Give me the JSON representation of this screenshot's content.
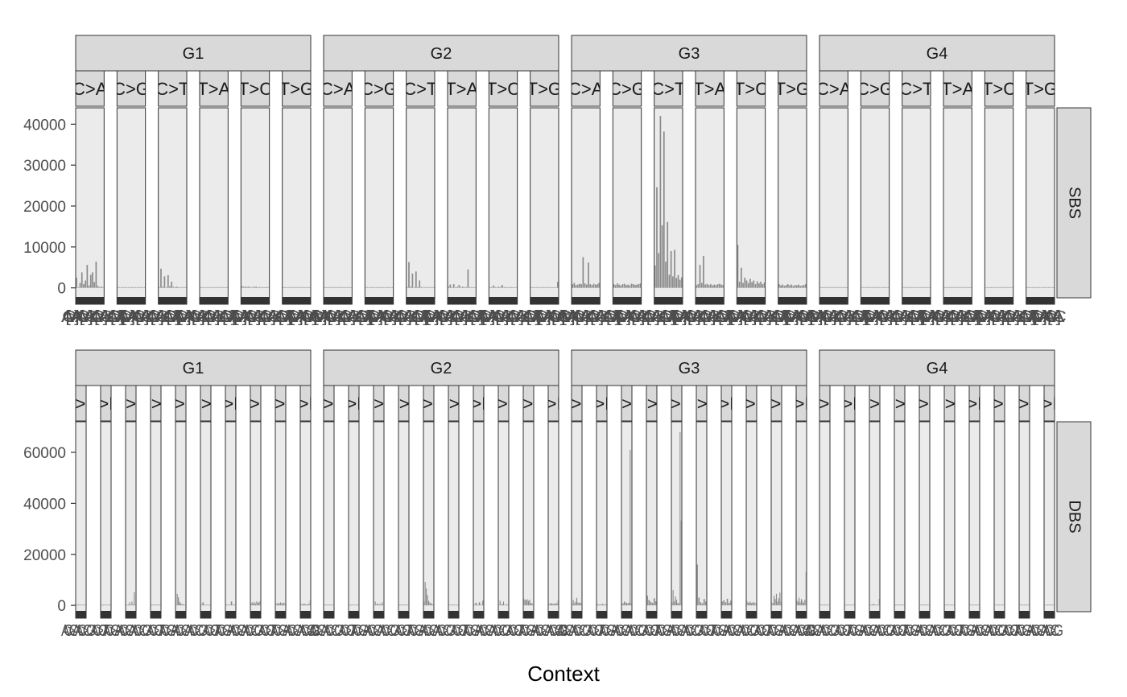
{
  "chart_data": {
    "type": "bar",
    "xlabel": "Context",
    "ylabel": "",
    "title": "",
    "grid": false,
    "legend": "none",
    "colors": {
      "panel_bg": "#ebebeb",
      "strip_bg": "#d9d9d9",
      "strip_border": "#333333",
      "bar": "#8a8a8a",
      "band": "#333333",
      "tick_text": "#4d4d4d"
    },
    "column_facets": [
      "G1",
      "G2",
      "G3",
      "G4"
    ],
    "rows": [
      {
        "name": "SBS",
        "ylim": [
          -4000,
          44000
        ],
        "yticks": [
          0,
          10000,
          20000,
          30000,
          40000
        ],
        "substitution_types": [
          "C>A",
          "C>G",
          "C>T",
          "T>A",
          "T>C",
          "T>G"
        ],
        "bins_per_type": 16,
        "x_tick_label_sample": [
          "A[C>A]A",
          "A[C>A]C",
          "A[C>A]G",
          "A[C>A]T"
        ],
        "groups": {
          "G1": [
            [
              2500,
              100,
              1200,
              3800,
              900,
              1800,
              5600,
              600,
              3200,
              3800,
              1400,
              6400,
              500,
              200,
              300,
              150
            ],
            [
              120,
              80,
              150,
              90,
              60,
              140,
              100,
              70,
              130,
              90,
              110,
              80,
              60,
              100,
              90,
              70
            ],
            [
              200,
              4700,
              300,
              2800,
              150,
              3100,
              400,
              1500,
              250,
              200,
              300,
              150,
              120,
              180,
              100,
              90
            ],
            [
              100,
              80,
              60,
              90,
              70,
              100,
              80,
              60,
              90,
              70,
              60,
              80,
              90,
              70,
              60,
              80
            ],
            [
              400,
              250,
              300,
              200,
              350,
              150,
              200,
              250,
              300,
              150,
              200,
              100,
              150,
              120,
              200,
              100
            ],
            [
              80,
              60,
              100,
              90,
              70,
              50,
              80,
              60,
              90,
              70,
              50,
              80,
              60,
              70,
              90,
              60
            ]
          ],
          "G2": [
            [
              80,
              50,
              60,
              40,
              70,
              60,
              50,
              40,
              60,
              50,
              40,
              30,
              60,
              50,
              40,
              30
            ],
            [
              50,
              40,
              60,
              30,
              50,
              40,
              30,
              50,
              40,
              60,
              30,
              40,
              50,
              30,
              40,
              30
            ],
            [
              200,
              6300,
              300,
              3500,
              150,
              4000,
              200,
              1800,
              200,
              100,
              150,
              80,
              100,
              120,
              90,
              80
            ],
            [
              300,
              800,
              200,
              900,
              150,
              250,
              700,
              200,
              300,
              150,
              200,
              4500,
              200,
              150,
              100,
              80
            ],
            [
              200,
              150,
              600,
              200,
              150,
              300,
              200,
              700,
              150,
              200,
              100,
              150,
              200,
              100,
              150,
              100
            ],
            [
              100,
              80,
              120,
              90,
              60,
              100,
              80,
              70,
              90,
              60,
              100,
              80,
              60,
              90,
              70,
              1500
            ]
          ],
          "G3": [
            [
              900,
              1200,
              700,
              800,
              1000,
              900,
              7500,
              1100,
              800,
              6200,
              900,
              700,
              1000,
              800,
              900,
              1200
            ],
            [
              900,
              700,
              1100,
              800,
              600,
              900,
              1000,
              700,
              800,
              600,
              1000,
              900,
              700,
              800,
              900,
              1100
            ],
            [
              5500,
              24600,
              8500,
              42000,
              15300,
              38200,
              6400,
              16100,
              3200,
              9000,
              2800,
              9300,
              2400,
              3100,
              2000,
              2600
            ],
            [
              600,
              900,
              5600,
              1200,
              7800,
              800,
              1000,
              700,
              900,
              600,
              800,
              700,
              900,
              1000,
              800,
              700
            ],
            [
              10500,
              1500,
              4900,
              1200,
              2500,
              1800,
              1200,
              2200,
              1400,
              1800,
              900,
              1600,
              1100,
              1500,
              900,
              1300
            ],
            [
              900,
              600,
              800,
              500,
              700,
              900,
              600,
              800,
              500,
              700,
              600,
              800,
              500,
              600,
              700,
              900
            ]
          ],
          "G4": [
            [
              20,
              10,
              15,
              20,
              10,
              15,
              20,
              10,
              15,
              20,
              10,
              15,
              20,
              10,
              15,
              20
            ],
            [
              15,
              10,
              20,
              15,
              10,
              20,
              15,
              10,
              20,
              15,
              10,
              20,
              15,
              10,
              20,
              15
            ],
            [
              150,
              0,
              120,
              0,
              100,
              0,
              130,
              0,
              110,
              0,
              90,
              0,
              80,
              0,
              100,
              0
            ],
            [
              60,
              0,
              40,
              0,
              50,
              0,
              30,
              0,
              40,
              0,
              50,
              0,
              30,
              0,
              40,
              0
            ],
            [
              20,
              10,
              15,
              20,
              10,
              15,
              20,
              10,
              15,
              20,
              10,
              15,
              20,
              10,
              15,
              20
            ],
            [
              15,
              10,
              20,
              15,
              10,
              20,
              15,
              10,
              20,
              15,
              10,
              20,
              15,
              10,
              20,
              15
            ]
          ]
        }
      },
      {
        "name": "DBS",
        "ylim": [
          -5000,
          72000
        ],
        "yticks": [
          0,
          20000,
          40000,
          60000
        ],
        "substitution_types": [
          "AC>NN",
          "AT>NN",
          "CC>NN",
          "CG>NN",
          "CT>NN",
          "GC>NN",
          "TA>NN",
          "TC>NN",
          "TG>NN",
          "TT>NN"
        ],
        "type_bins": [
          9,
          6,
          9,
          6,
          9,
          6,
          6,
          9,
          9,
          9
        ],
        "x_tick_label_sample": [
          "AC>CA",
          "AC>CG",
          "AC>CT",
          "AC>GA"
        ],
        "groups": {
          "G1": [
            [
              200,
              100,
              150,
              80,
              120,
              100,
              60,
              90,
              70
            ],
            [
              50,
              30,
              40,
              60,
              30,
              40
            ],
            [
              100,
              200,
              300,
              1200,
              200,
              1500,
              300,
              5200,
              400
            ],
            [
              200,
              100,
              150,
              80,
              120,
              100
            ],
            [
              300,
              4500,
              3200,
              1500,
              800,
              600,
              400,
              300,
              200
            ],
            [
              300,
              1200,
              200,
              150,
              100,
              80
            ],
            [
              100,
              80,
              60,
              1500,
              90,
              70
            ],
            [
              900,
              1200,
              800,
              1400,
              700,
              1600,
              1000,
              1300,
              1800
            ],
            [
              800,
              600,
              1000,
              700,
              1200,
              900,
              800,
              1100,
              600
            ],
            [
              600,
              400,
              500,
              700,
              400,
              300,
              500,
              600,
              2000
            ]
          ],
          "G2": [
            [
              100,
              80,
              60,
              90,
              70,
              100,
              80,
              60,
              90
            ],
            [
              30,
              20,
              40,
              30,
              20,
              40
            ],
            [
              200,
              1500,
              300,
              800,
              200,
              600,
              300,
              1200,
              200
            ],
            [
              100,
              50,
              80,
              60,
              90,
              70
            ],
            [
              1500,
              9200,
              6600,
              4000,
              1800,
              1200,
              800,
              600,
              400
            ],
            [
              200,
              150,
              300,
              100,
              200,
              150
            ],
            [
              100,
              1000,
              80,
              1200,
              90,
              1800
            ],
            [
              200,
              1800,
              300,
              600,
              1500,
              200,
              300,
              400,
              200
            ],
            [
              2500,
              2300,
              2000,
              2400,
              1800,
              2200,
              1000,
              800,
              600
            ],
            [
              800,
              600,
              900,
              700,
              500,
              800,
              600,
              900,
              2000
            ]
          ],
          "G3": [
            [
              600,
              2100,
              800,
              1500,
              3000,
              1200,
              900,
              1100,
              800
            ],
            [
              500,
              300,
              400,
              600,
              300,
              400
            ],
            [
              900,
              800,
              1500,
              1200,
              1000,
              800,
              1100,
              61000,
              900
            ],
            [
              3800,
              2100,
              1400,
              1000,
              2800,
              1600
            ],
            [
              1200,
              6000,
              1500,
              3500,
              2200,
              1000,
              800,
              68000,
              33300
            ],
            [
              16000,
              3000,
              1200,
              800,
              2500,
              1500
            ],
            [
              1500,
              2000,
              1200,
              2600,
              1000,
              1800
            ],
            [
              1800,
              1200,
              1000,
              1500,
              900,
              1100,
              1300,
              800,
              1000
            ],
            [
              1200,
              800,
              3800,
              2500,
              4500,
              1500,
              2800,
              5000,
              1400
            ],
            [
              2000,
              1500,
              3000,
              1200,
              2500,
              1800,
              1000,
              2200,
              13200
            ]
          ],
          "G4": [
            [
              30,
              20,
              40,
              30,
              20,
              40,
              30,
              20,
              40
            ],
            [
              20,
              10,
              15,
              20,
              10,
              15
            ],
            [
              400,
              100,
              80,
              600,
              100,
              80,
              200,
              100,
              2500
            ],
            [
              20,
              10,
              15,
              20,
              10,
              15
            ],
            [
              30,
              20,
              40,
              30,
              20,
              40,
              30,
              20,
              40
            ],
            [
              20,
              10,
              15,
              20,
              10,
              15
            ],
            [
              20,
              10,
              15,
              20,
              10,
              15
            ],
            [
              30,
              20,
              40,
              30,
              20,
              40,
              30,
              20,
              40
            ],
            [
              300,
              0,
              250,
              0,
              0,
              0,
              200,
              0,
              280
            ],
            [
              30,
              20,
              40,
              30,
              20,
              40,
              30,
              20,
              40
            ]
          ]
        }
      }
    ]
  }
}
